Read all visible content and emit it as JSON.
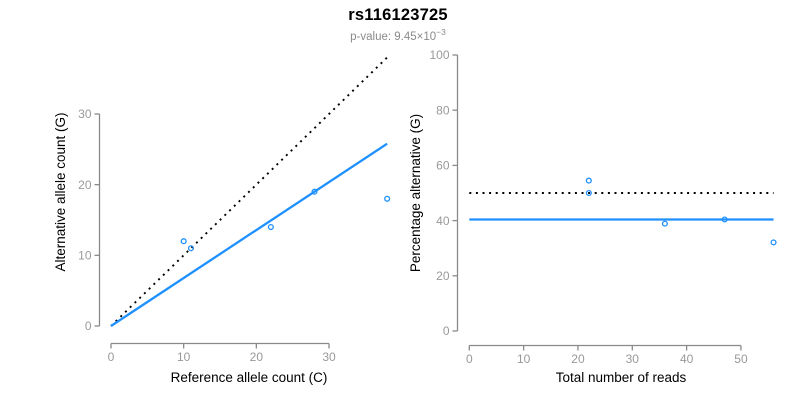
{
  "header": {
    "title": "rs116123725",
    "subtitle_prefix": "p-value: 9.45×10",
    "subtitle_exponent": "−3"
  },
  "colors": {
    "accent_blue": "#1E90FF",
    "line_black": "#000000",
    "axis_gray": "#8a8a8a",
    "tick_label_gray": "#999999",
    "subtitle_gray": "#8a8a8a",
    "title_black": "#000000"
  },
  "chart_data": [
    {
      "type": "scatter",
      "panel": "left",
      "xlabel": "Reference allele count (C)",
      "ylabel": "Alternative allele count (G)",
      "xlim": [
        0,
        38
      ],
      "ylim": [
        0,
        38
      ],
      "xticks": [
        0,
        10,
        20,
        30
      ],
      "yticks": [
        0,
        10,
        20,
        30
      ],
      "grid": false,
      "points": [
        [
          10,
          12
        ],
        [
          11,
          11
        ],
        [
          22,
          14
        ],
        [
          28,
          19
        ],
        [
          38,
          18
        ]
      ],
      "lines": [
        {
          "name": "identity-line",
          "style": "dotted",
          "color": "line_black",
          "from": [
            0,
            0
          ],
          "to": [
            38,
            38
          ]
        },
        {
          "name": "fit-line",
          "style": "solid",
          "color": "accent_blue",
          "from": [
            0,
            0
          ],
          "to": [
            38,
            25.8
          ]
        }
      ]
    },
    {
      "type": "scatter",
      "panel": "right",
      "xlabel": "Total number of reads",
      "ylabel": "Percentage alternative (G)",
      "xlim": [
        0,
        56
      ],
      "ylim": [
        0,
        100
      ],
      "xticks": [
        0,
        10,
        20,
        30,
        40,
        50
      ],
      "yticks": [
        0,
        20,
        40,
        60,
        80,
        100
      ],
      "grid": false,
      "points": [
        [
          22,
          54.5
        ],
        [
          22,
          50
        ],
        [
          36,
          38.9
        ],
        [
          47,
          40.4
        ],
        [
          56,
          32.1
        ]
      ],
      "lines": [
        {
          "name": "fifty-percent-line",
          "style": "dotted",
          "color": "line_black",
          "from": [
            0,
            50
          ],
          "to": [
            56,
            50
          ]
        },
        {
          "name": "mean-percentage-line",
          "style": "solid",
          "color": "accent_blue",
          "from": [
            0,
            40.4
          ],
          "to": [
            56,
            40.4
          ]
        }
      ]
    }
  ]
}
